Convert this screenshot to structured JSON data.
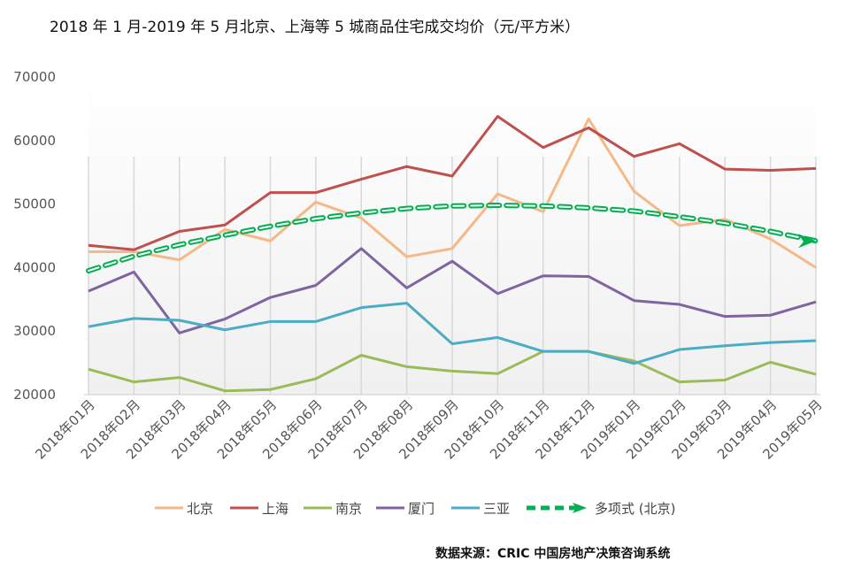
{
  "chart_data": {
    "type": "line",
    "title": "2018 年 1 月-2019 年 5 月北京、上海等 5 城商品住宅成交均价（元/平方米）",
    "source": "数据来源：CRIC 中国房地产决策咨询系统",
    "categories": [
      "2018年01月",
      "2018年02月",
      "2018年03月",
      "2018年04月",
      "2018年05月",
      "2018年06月",
      "2018年07月",
      "2018年08月",
      "2018年09月",
      "2018年10月",
      "2018年11月",
      "2018年12月",
      "2019年01月",
      "2019年02月",
      "2019年03月",
      "2019年04月",
      "2019年05月"
    ],
    "yticks": [
      "70000",
      "60000",
      "50000",
      "40000",
      "30000",
      "20000"
    ],
    "ylim": [
      20000,
      70000
    ],
    "legend_position": "bottom",
    "series": [
      {
        "name": "北京",
        "color": "#f5b887",
        "values": [
          42500,
          42500,
          41200,
          46000,
          44200,
          50300,
          47800,
          41700,
          43000,
          51600,
          48800,
          63400,
          52000,
          46600,
          47600,
          44500,
          40000
        ]
      },
      {
        "name": "上海",
        "color": "#c0504d",
        "values": [
          43500,
          42800,
          45700,
          46700,
          51800,
          51800,
          53900,
          55900,
          54400,
          63800,
          58900,
          62000,
          57500,
          59500,
          55500,
          55300,
          55600
        ]
      },
      {
        "name": "南京",
        "color": "#9bbb59",
        "values": [
          24000,
          22000,
          22700,
          20600,
          20800,
          22500,
          26200,
          24400,
          23700,
          23300,
          26800,
          26800,
          25300,
          22000,
          22300,
          25100,
          23200
        ]
      },
      {
        "name": "厦门",
        "color": "#8064a2",
        "values": [
          36300,
          39300,
          29700,
          31900,
          35300,
          37200,
          43000,
          36800,
          41000,
          35900,
          38700,
          38600,
          34800,
          34200,
          32300,
          32500,
          34600
        ]
      },
      {
        "name": "三亚",
        "color": "#4bacc6",
        "values": [
          30700,
          32000,
          31700,
          30200,
          31500,
          31500,
          33700,
          34400,
          28000,
          29000,
          26800,
          26800,
          24900,
          27100,
          27700,
          28200,
          28500
        ]
      },
      {
        "name": "多项式 (北京)",
        "color": "#00b050",
        "dashed": true,
        "values": [
          39500,
          41800,
          43600,
          45100,
          46500,
          47700,
          48600,
          49300,
          49700,
          49800,
          49700,
          49400,
          48900,
          48000,
          47000,
          45700,
          44200
        ]
      }
    ]
  }
}
